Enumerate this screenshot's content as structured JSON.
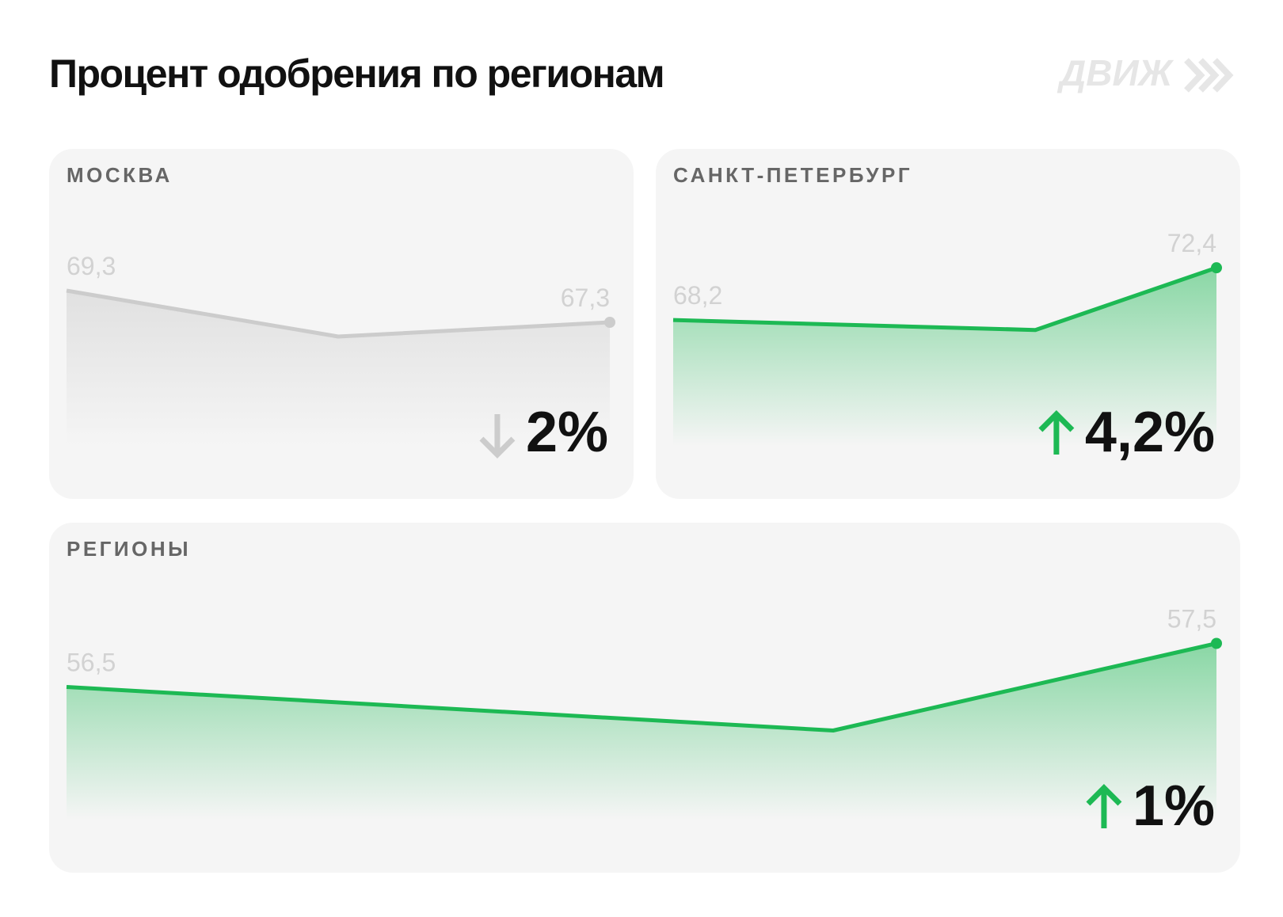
{
  "title": "Процент одобрения по регионам",
  "logo": "ДВИЖ",
  "chart_data": [
    {
      "type": "line",
      "title": "МОСКВА",
      "x": [
        0,
        1,
        2
      ],
      "xlim": [
        0,
        2
      ],
      "values": [
        69.3,
        66.4,
        67.3
      ],
      "value_labels": [
        "69,3",
        null,
        "67,3"
      ],
      "color": "#cccccc",
      "ylim": [
        61,
        72
      ],
      "delta": "2%",
      "direction": "down"
    },
    {
      "type": "line",
      "title": "САНКТ-ПЕТЕРБУРГ",
      "x": [
        0,
        2,
        3
      ],
      "xlim": [
        0,
        3
      ],
      "values": [
        68.2,
        67.4,
        72.4
      ],
      "value_labels": [
        "68,2",
        null,
        "72,4"
      ],
      "color": "#1db954",
      "ylim": [
        60,
        74
      ],
      "delta": "4,2%",
      "direction": "up"
    },
    {
      "type": "line",
      "title": "РЕГИОНЫ",
      "x": [
        0,
        2,
        3
      ],
      "xlim": [
        0,
        3
      ],
      "values": [
        56.5,
        55.5,
        57.5
      ],
      "value_labels": [
        "56,5",
        null,
        "57,5"
      ],
      "color": "#1db954",
      "ylim": [
        54,
        58
      ],
      "delta": "1%",
      "direction": "up"
    }
  ]
}
